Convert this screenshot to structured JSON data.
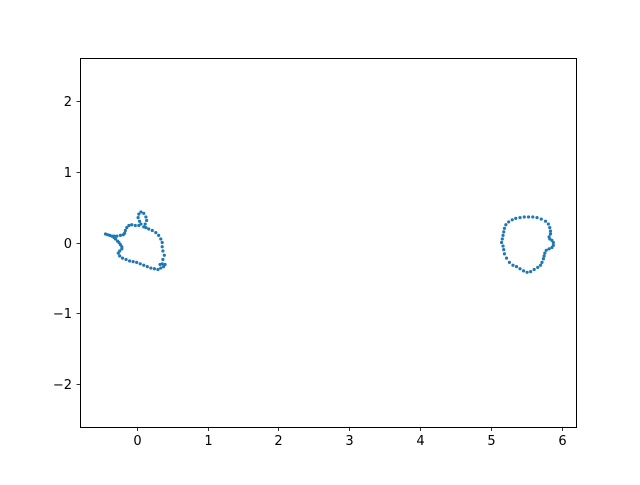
{
  "chart_data": {
    "type": "scatter",
    "xlim": [
      -0.8,
      6.2
    ],
    "ylim": [
      -2.6,
      2.6
    ],
    "xticks": [
      0,
      1,
      2,
      3,
      4,
      5,
      6
    ],
    "xtick_labels": [
      "0",
      "1",
      "2",
      "3",
      "4",
      "5",
      "6"
    ],
    "yticks": [
      -2,
      -1,
      0,
      1,
      2
    ],
    "ytick_labels": [
      "−2",
      "−1",
      "0",
      "1",
      "2"
    ],
    "grid": false,
    "series": [
      {
        "color": "#1f77b4",
        "points": [
          [
            -0.44,
            0.12
          ],
          [
            -0.41,
            0.11
          ],
          [
            -0.38,
            0.1
          ],
          [
            -0.35,
            0.09
          ],
          [
            -0.32,
            0.07
          ],
          [
            -0.3,
            0.05
          ],
          [
            -0.27,
            0.02
          ],
          [
            -0.25,
            0.0
          ],
          [
            -0.23,
            -0.03
          ],
          [
            -0.21,
            -0.06
          ],
          [
            -0.21,
            -0.09
          ],
          [
            -0.24,
            -0.12
          ],
          [
            -0.26,
            -0.15
          ],
          [
            -0.24,
            -0.19
          ],
          [
            -0.2,
            -0.22
          ],
          [
            -0.15,
            -0.24
          ],
          [
            -0.1,
            -0.26
          ],
          [
            -0.05,
            -0.27
          ],
          [
            0.0,
            -0.28
          ],
          [
            0.05,
            -0.3
          ],
          [
            0.1,
            -0.32
          ],
          [
            0.15,
            -0.34
          ],
          [
            0.2,
            -0.36
          ],
          [
            0.25,
            -0.37
          ],
          [
            0.3,
            -0.38
          ],
          [
            0.34,
            -0.36
          ],
          [
            0.38,
            -0.34
          ],
          [
            0.4,
            -0.31
          ],
          [
            0.36,
            -0.3
          ],
          [
            0.33,
            -0.31
          ],
          [
            0.37,
            -0.24
          ],
          [
            0.39,
            -0.18
          ],
          [
            0.37,
            -0.12
          ],
          [
            0.36,
            -0.06
          ],
          [
            0.36,
            0.0
          ],
          [
            0.34,
            0.05
          ],
          [
            0.31,
            0.1
          ],
          [
            0.27,
            0.14
          ],
          [
            0.22,
            0.17
          ],
          [
            0.17,
            0.19
          ],
          [
            0.13,
            0.21
          ],
          [
            0.1,
            0.22
          ],
          [
            0.12,
            0.26
          ],
          [
            0.14,
            0.31
          ],
          [
            0.13,
            0.36
          ],
          [
            0.1,
            0.41
          ],
          [
            0.06,
            0.43
          ],
          [
            0.03,
            0.4
          ],
          [
            0.02,
            0.35
          ],
          [
            0.04,
            0.3
          ],
          [
            0.06,
            0.26
          ],
          [
            0.03,
            0.24
          ],
          [
            -0.02,
            0.24
          ],
          [
            -0.07,
            0.25
          ],
          [
            -0.11,
            0.24
          ],
          [
            -0.14,
            0.21
          ],
          [
            -0.16,
            0.17
          ],
          [
            -0.17,
            0.13
          ],
          [
            -0.19,
            0.11
          ],
          [
            -0.23,
            0.1
          ],
          [
            -0.28,
            0.09
          ],
          [
            -0.32,
            0.09
          ]
        ]
      },
      {
        "color": "#1f77b4",
        "points": [
          [
            5.15,
            0.0
          ],
          [
            5.16,
            0.05
          ],
          [
            5.17,
            0.1
          ],
          [
            5.18,
            0.15
          ],
          [
            5.19,
            0.2
          ],
          [
            5.21,
            0.25
          ],
          [
            5.25,
            0.29
          ],
          [
            5.3,
            0.32
          ],
          [
            5.35,
            0.34
          ],
          [
            5.41,
            0.35
          ],
          [
            5.47,
            0.36
          ],
          [
            5.53,
            0.36
          ],
          [
            5.59,
            0.36
          ],
          [
            5.65,
            0.35
          ],
          [
            5.71,
            0.33
          ],
          [
            5.77,
            0.3
          ],
          [
            5.81,
            0.26
          ],
          [
            5.83,
            0.21
          ],
          [
            5.84,
            0.16
          ],
          [
            5.84,
            0.12
          ],
          [
            5.82,
            0.08
          ],
          [
            5.83,
            0.05
          ],
          [
            5.86,
            0.03
          ],
          [
            5.88,
            0.0
          ],
          [
            5.88,
            -0.04
          ],
          [
            5.86,
            -0.07
          ],
          [
            5.82,
            -0.09
          ],
          [
            5.78,
            -0.11
          ],
          [
            5.76,
            -0.15
          ],
          [
            5.75,
            -0.19
          ],
          [
            5.74,
            -0.23
          ],
          [
            5.72,
            -0.28
          ],
          [
            5.7,
            -0.32
          ],
          [
            5.66,
            -0.35
          ],
          [
            5.61,
            -0.38
          ],
          [
            5.56,
            -0.41
          ],
          [
            5.51,
            -0.42
          ],
          [
            5.46,
            -0.4
          ],
          [
            5.41,
            -0.37
          ],
          [
            5.36,
            -0.34
          ],
          [
            5.31,
            -0.32
          ],
          [
            5.26,
            -0.28
          ],
          [
            5.22,
            -0.22
          ],
          [
            5.19,
            -0.16
          ],
          [
            5.18,
            -0.1
          ],
          [
            5.17,
            -0.05
          ]
        ]
      }
    ]
  }
}
